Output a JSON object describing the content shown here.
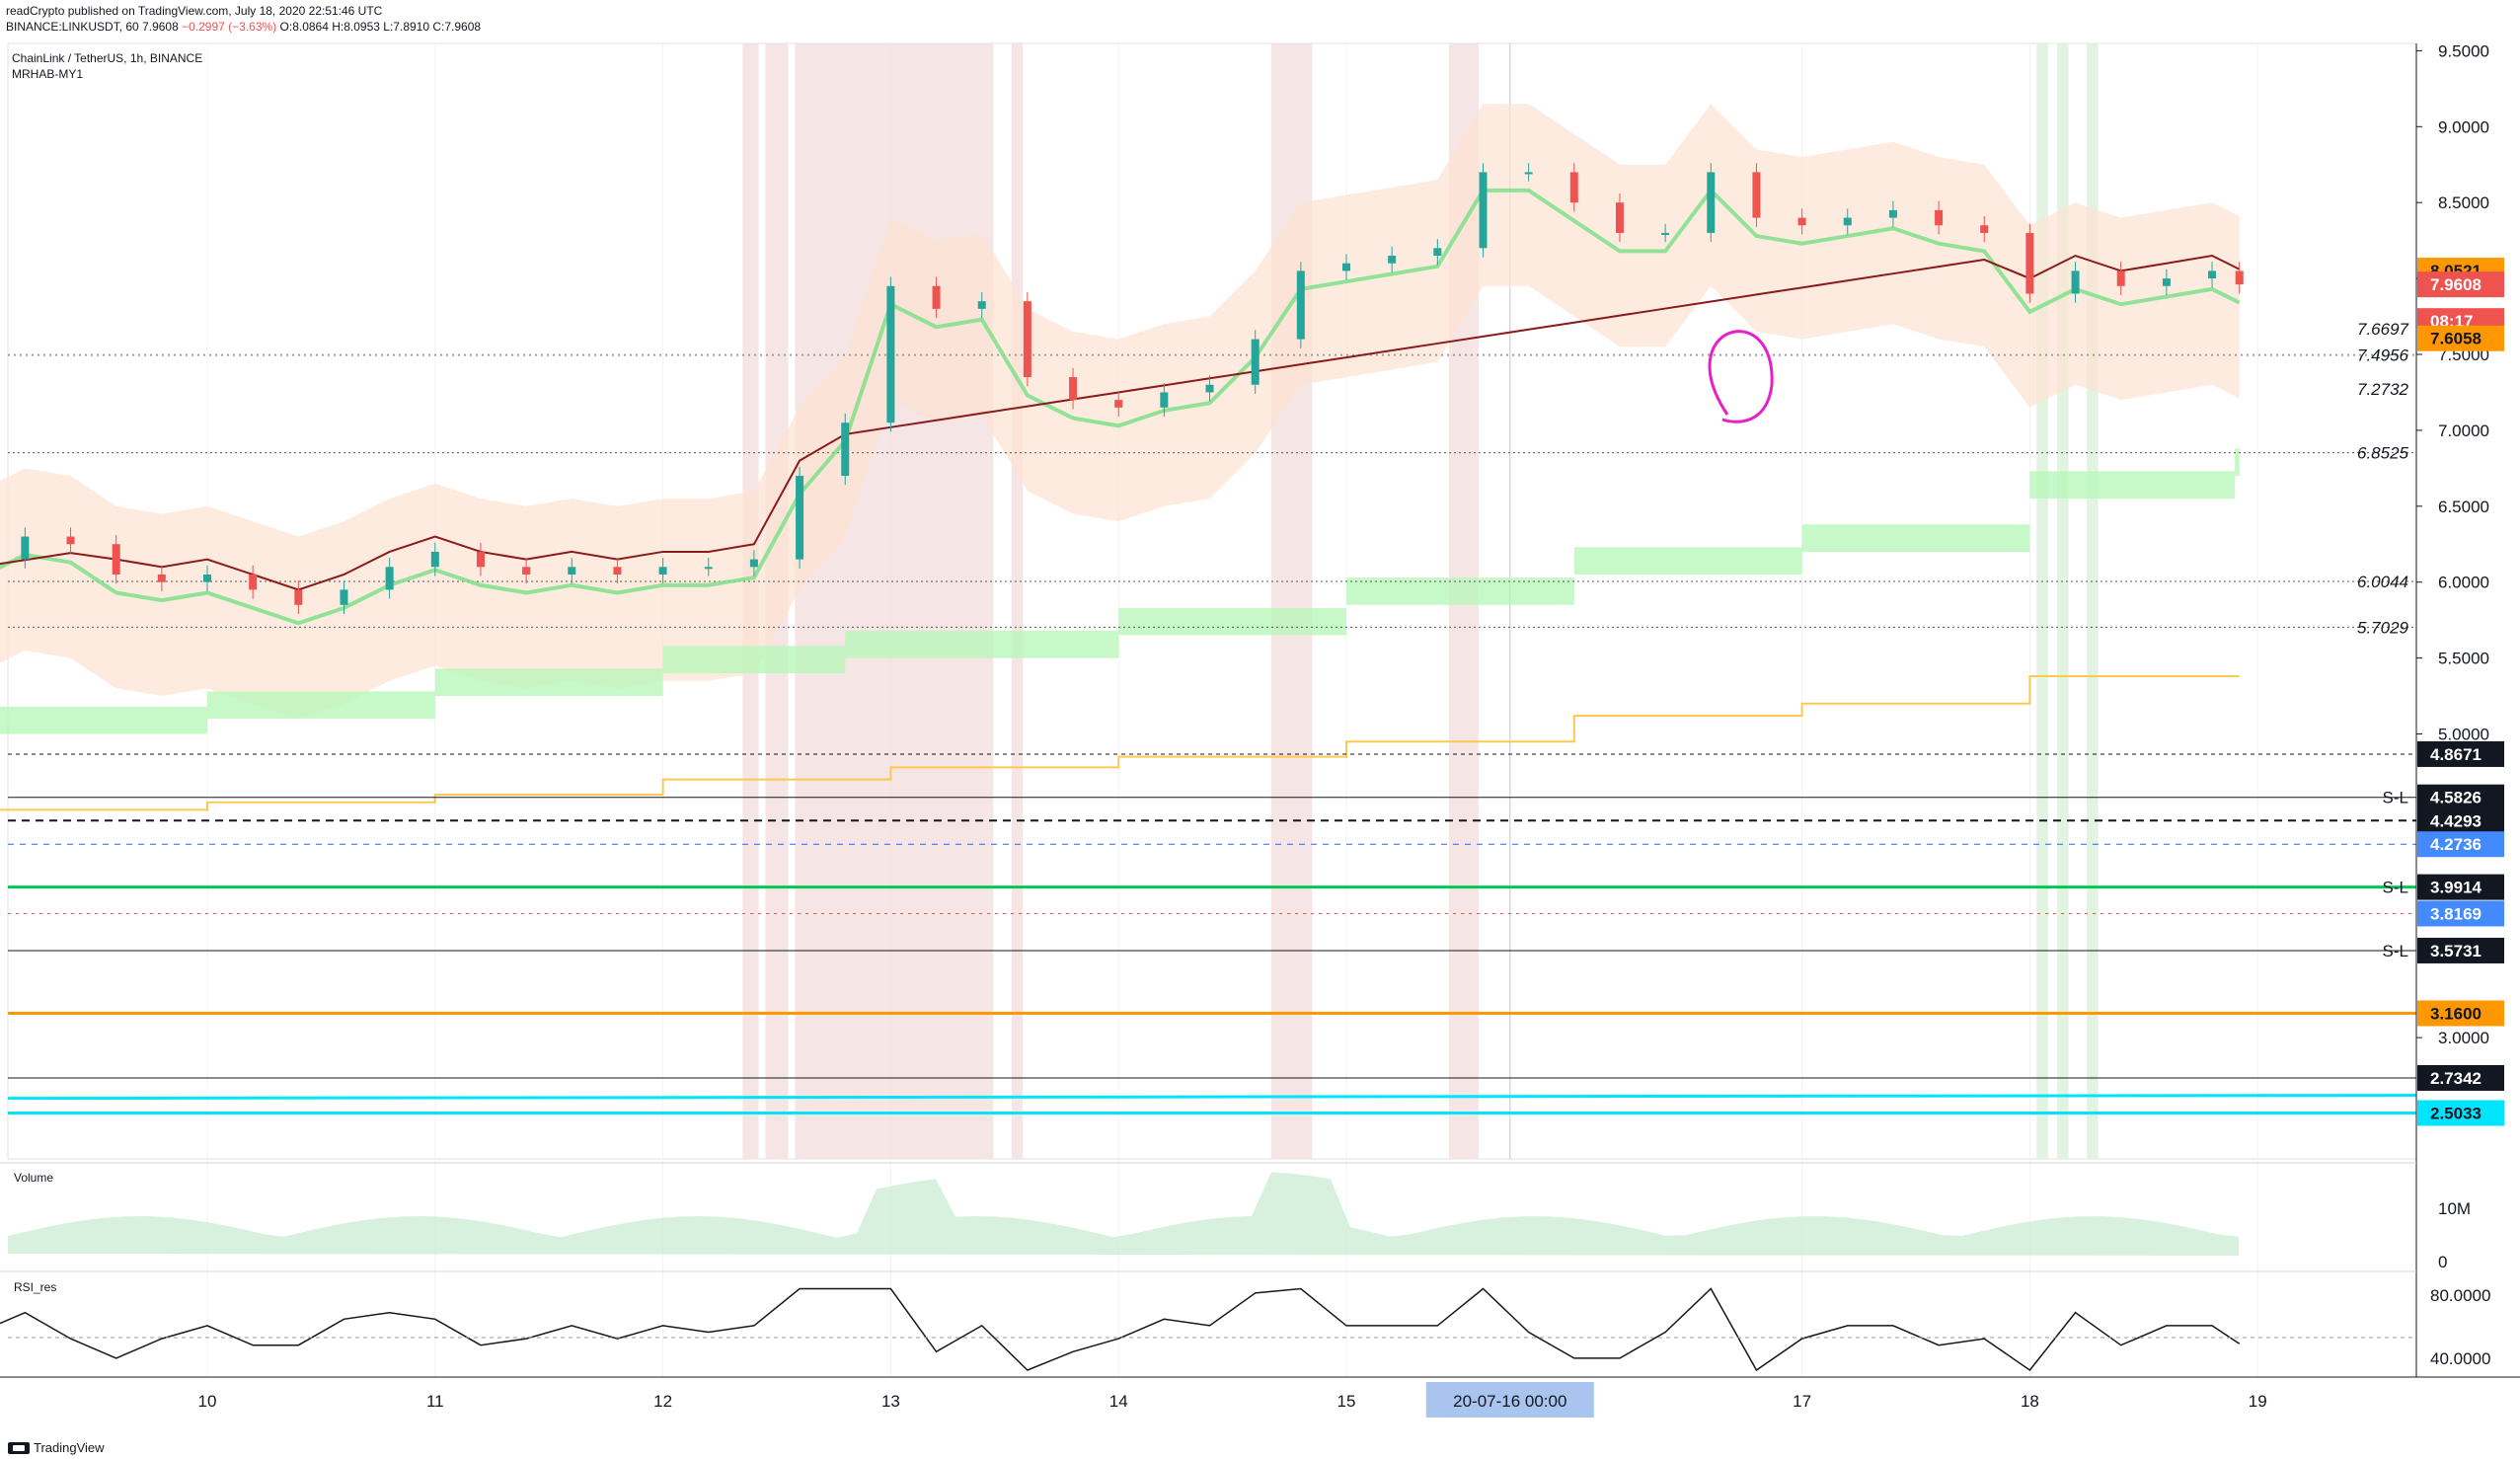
{
  "header": {
    "publisher": "readCrypto published on TradingView.com, July 18, 2020 22:51:46 UTC",
    "symbol": "BINANCE:LINKUSDT, 60",
    "last": "7.9608",
    "change": "−0.2997 (−3.63%)",
    "open": "O:8.0864",
    "high": "H:8.0953",
    "low": "L:7.8910",
    "close": "C:7.9608"
  },
  "legend": {
    "instrument": "ChainLink / TetherUS, 1h, BINANCE",
    "indicator": "MRHAB-MY1"
  },
  "panes": {
    "volume_label": "Volume",
    "rsi_label": "RSI_res"
  },
  "footer": {
    "brand": "TradingView"
  },
  "colors": {
    "up": "#26a69a",
    "down": "#ef5350",
    "orange": "#ff9800",
    "green_band": "#b9f6b9",
    "yellow_line": "#ffc850",
    "cyan": "#00e5ff",
    "magenta": "#e91ec8"
  },
  "chart_data": {
    "type": "line",
    "title": "ChainLink / TetherUS, 1h, BINANCE",
    "x_tick_labels": [
      "10",
      "11",
      "12",
      "13",
      "14",
      "15",
      "17",
      "18",
      "19"
    ],
    "x_cursor_label": "20-07-16   00:00",
    "y_tick_labels": [
      "9.5000",
      "9.0000",
      "8.5000",
      "8.0000",
      "7.5000",
      "7.0000",
      "6.5000",
      "6.0000",
      "5.5000",
      "5.0000",
      "3.0000"
    ],
    "ylim": [
      2.45,
      9.6
    ],
    "price_series": {
      "name": "LINKUSDT close",
      "x_day": [
        9.0,
        9.2,
        9.4,
        9.6,
        9.8,
        10.0,
        10.2,
        10.4,
        10.6,
        10.8,
        11.0,
        11.2,
        11.4,
        11.6,
        11.8,
        12.0,
        12.2,
        12.4,
        12.6,
        12.8,
        13.0,
        13.2,
        13.4,
        13.6,
        13.8,
        14.0,
        14.2,
        14.4,
        14.6,
        14.8,
        15.0,
        15.2,
        15.4,
        15.6,
        15.8,
        16.0,
        16.2,
        16.4,
        16.6,
        16.8,
        17.0,
        17.2,
        17.4,
        17.6,
        17.8,
        18.0,
        18.2,
        18.4,
        18.6,
        18.8,
        18.92
      ],
      "close": [
        6.15,
        6.3,
        6.25,
        6.05,
        6.0,
        6.05,
        5.95,
        5.85,
        5.95,
        6.1,
        6.2,
        6.1,
        6.05,
        6.1,
        6.05,
        6.1,
        6.1,
        6.15,
        6.7,
        7.05,
        7.95,
        7.8,
        7.85,
        7.35,
        7.2,
        7.15,
        7.25,
        7.3,
        7.6,
        8.05,
        8.1,
        8.15,
        8.2,
        8.7,
        8.7,
        8.5,
        8.3,
        8.3,
        8.7,
        8.4,
        8.35,
        8.4,
        8.45,
        8.35,
        8.3,
        7.9,
        8.05,
        7.95,
        8.0,
        8.05,
        7.9608
      ]
    },
    "price_labels": [
      {
        "value": "8.0521",
        "style": "orange-box"
      },
      {
        "value": "7.9608",
        "style": "red-box"
      },
      {
        "value": "08:17",
        "style": "red-box"
      },
      {
        "value": "7.6697",
        "style": "text"
      },
      {
        "value": "7.4956",
        "style": "text"
      },
      {
        "value": "7.6058",
        "style": "orange-box"
      },
      {
        "value": "7.2732",
        "style": "text"
      },
      {
        "value": "6.8525",
        "style": "text"
      },
      {
        "value": "6.0044",
        "style": "text"
      },
      {
        "value": "5.7029",
        "style": "text"
      },
      {
        "value": "4.8671",
        "style": "black-box"
      },
      {
        "value": "4.5826",
        "style": "black-box"
      },
      {
        "value": "4.4293",
        "style": "black-box"
      },
      {
        "value": "4.2736",
        "style": "blue-box"
      },
      {
        "value": "3.9914",
        "style": "black-box"
      },
      {
        "value": "3.8169",
        "style": "blue-box"
      },
      {
        "value": "3.5731",
        "style": "black-box"
      },
      {
        "value": "3.1600",
        "style": "orange-box"
      },
      {
        "value": "2.7342",
        "style": "black-box"
      },
      {
        "value": "2.5033",
        "style": "cyan-box"
      }
    ],
    "sl_marker": "S-L",
    "volume_axis": [
      "10M",
      "0"
    ],
    "rsi_axis": [
      "80.0000",
      "40.0000"
    ]
  }
}
